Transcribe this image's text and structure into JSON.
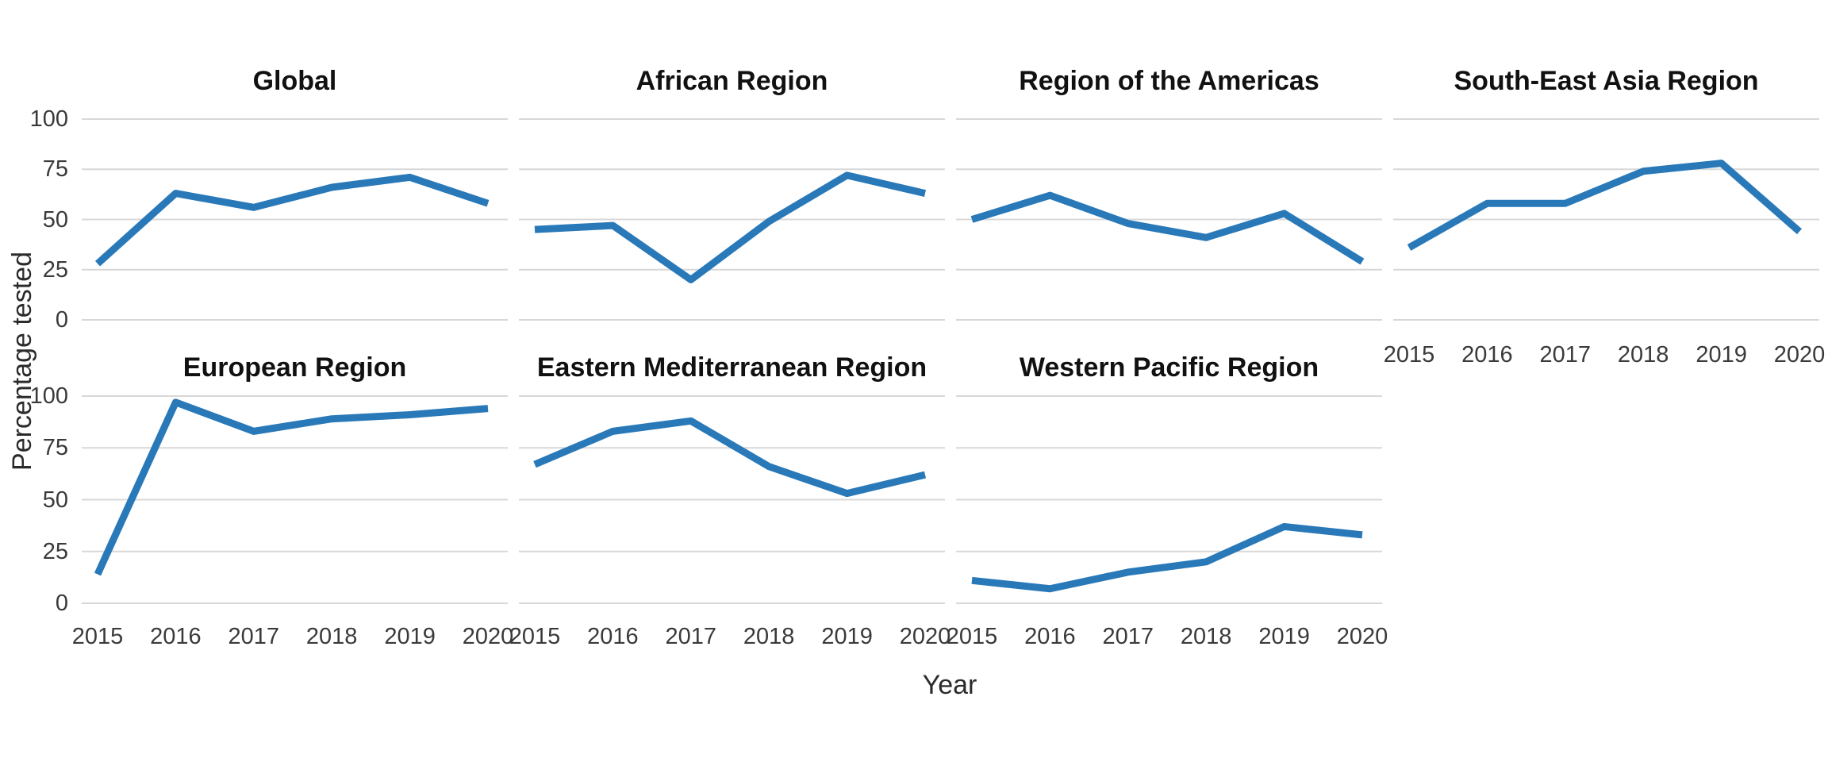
{
  "figure": {
    "y_axis_label": "Percentage tested",
    "x_axis_label": "Year",
    "colors": {
      "line": "#2979B9",
      "gridline": "#D8D8D8",
      "title_text": "#111111",
      "tick_text": "#3A3A3A",
      "background": "#FFFFFF"
    }
  },
  "chart_data": {
    "type": "line",
    "layout": "faceted small multiples, 4 columns x 2 rows, shared axes",
    "title": "",
    "xlabel": "Year",
    "ylabel": "Percentage tested",
    "x": [
      "2015",
      "2016",
      "2017",
      "2018",
      "2019",
      "2020"
    ],
    "ylim": [
      0,
      100
    ],
    "yticks": [
      0,
      25,
      50,
      75,
      100
    ],
    "grid": "horizontal gridlines only, light gray",
    "legend": "none",
    "series": [
      {
        "name": "Global",
        "values": [
          28,
          63,
          56,
          66,
          71,
          58
        ]
      },
      {
        "name": "African Region",
        "values": [
          45,
          47,
          20,
          49,
          72,
          63
        ]
      },
      {
        "name": "Region of the Americas",
        "values": [
          50,
          62,
          48,
          41,
          53,
          29
        ]
      },
      {
        "name": "South-East Asia Region",
        "values": [
          36,
          58,
          58,
          74,
          78,
          44
        ]
      },
      {
        "name": "European Region",
        "values": [
          14,
          97,
          83,
          89,
          91,
          94
        ]
      },
      {
        "name": "Eastern Mediterranean Region",
        "values": [
          67,
          83,
          88,
          66,
          53,
          62
        ]
      },
      {
        "name": "Western Pacific Region",
        "values": [
          11,
          7,
          15,
          20,
          37,
          33
        ]
      }
    ]
  }
}
